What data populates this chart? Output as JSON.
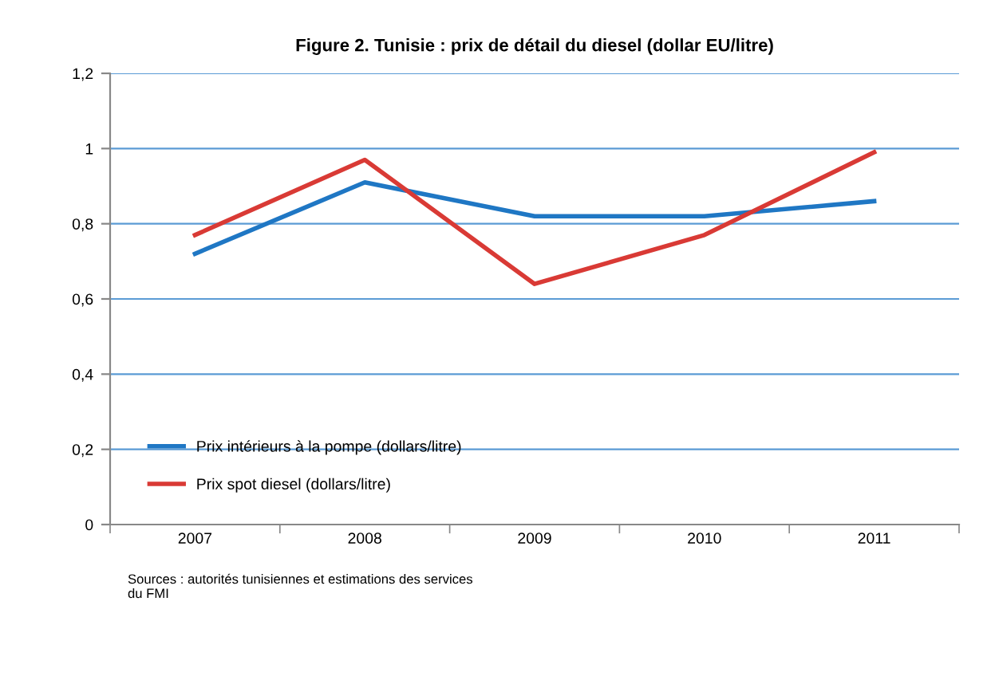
{
  "chart_data": {
    "type": "line",
    "title": "Figure 2. Tunisie : prix de détail du diesel (dollar EU/litre)",
    "categories": [
      "2007",
      "2008",
      "2009",
      "2010",
      "2011"
    ],
    "series": [
      {
        "name": "Prix intérieurs à la pompe (dollars/litre)",
        "color": "#1f77c4",
        "values": [
          0.72,
          0.91,
          0.82,
          0.82,
          0.86
        ]
      },
      {
        "name": "Prix spot diesel (dollars/litre)",
        "color": "#d93a35",
        "values": [
          0.77,
          0.97,
          0.64,
          0.77,
          0.99
        ]
      }
    ],
    "ylim": [
      0,
      1.2
    ],
    "yticks": [
      0,
      {
        "value": 0.2,
        "label": "0,2"
      },
      {
        "value": 0.4,
        "label": "0,4"
      },
      {
        "value": 0.6,
        "label": "0,6"
      },
      {
        "value": 0.8,
        "label": "0,8"
      },
      1,
      {
        "value": 1.2,
        "label": "1,2"
      }
    ],
    "grid": "y",
    "legend": "bottom left",
    "marker": "none",
    "line_style": "solid",
    "annotations": [
      "Sources : autorités tunisiennes et estimations des services\ndu FMI"
    ]
  }
}
